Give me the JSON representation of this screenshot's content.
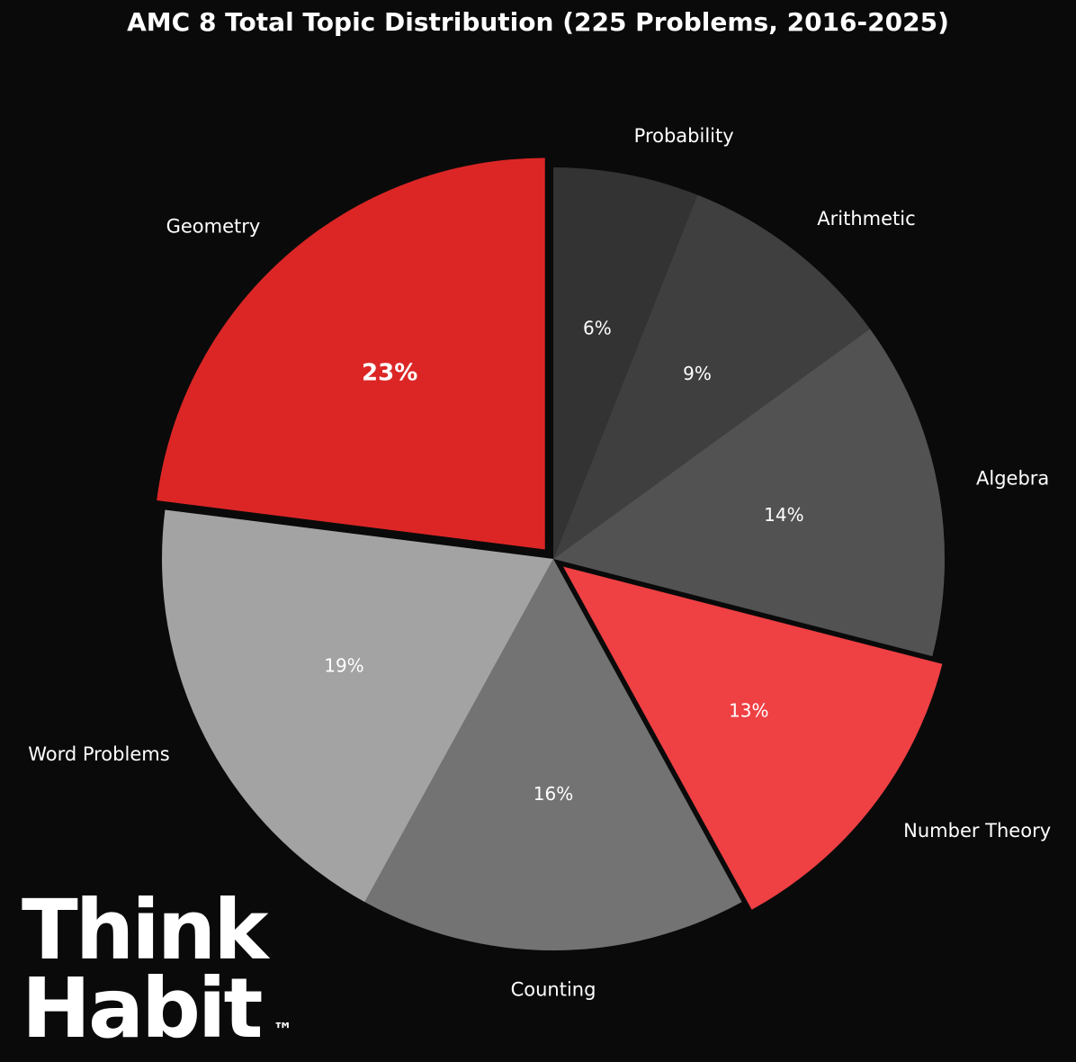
{
  "chart_data": {
    "type": "pie",
    "title": "AMC 8 Total Topic Distribution (225 Problems, 2016-2025)",
    "slices": [
      {
        "label": "Probability",
        "value": 6,
        "pct_label": "6%",
        "color": "#333333",
        "explode": false,
        "highlight": false
      },
      {
        "label": "Arithmetic",
        "value": 9,
        "pct_label": "9%",
        "color": "#3f3f3f",
        "explode": false,
        "highlight": false
      },
      {
        "label": "Algebra",
        "value": 14,
        "pct_label": "14%",
        "color": "#525252",
        "explode": false,
        "highlight": false
      },
      {
        "label": "Number Theory",
        "value": 13,
        "pct_label": "13%",
        "color": "#ef4044",
        "explode": true,
        "highlight": false
      },
      {
        "label": "Counting",
        "value": 16,
        "pct_label": "16%",
        "color": "#737373",
        "explode": false,
        "highlight": false
      },
      {
        "label": "Word Problems",
        "value": 19,
        "pct_label": "19%",
        "color": "#a3a3a3",
        "explode": false,
        "highlight": false
      },
      {
        "label": "Geometry",
        "value": 23,
        "pct_label": "23%",
        "color": "#dc2626",
        "explode": true,
        "highlight": true
      }
    ],
    "start_angle": "top",
    "direction": "clockwise",
    "background": "#0a0a0a",
    "text_color": "#ffffff"
  },
  "logo": {
    "line1": "Think",
    "line2": "Habit",
    "mark": "™"
  }
}
